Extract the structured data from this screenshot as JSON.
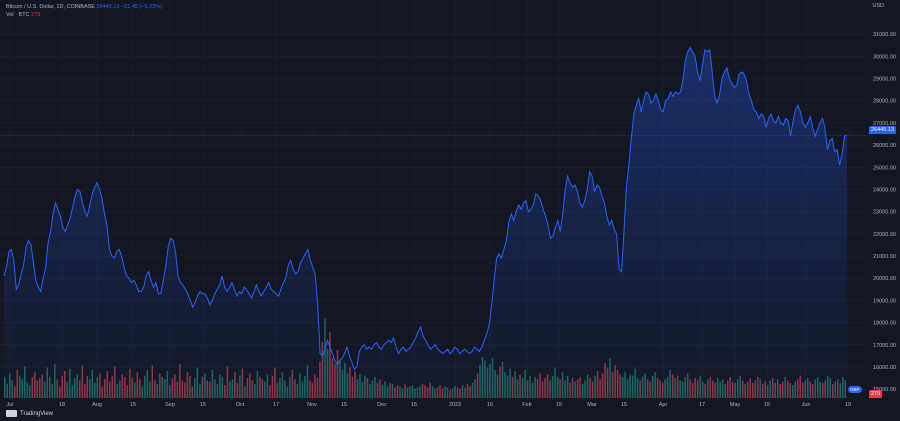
{
  "legend": {
    "symbol": "Bitcoin / U.S. Dollar, 1D, COINBASE",
    "last_price": "26445.13",
    "change": "−61.45 (−0.23%)",
    "vol_label": "Vol · BTC",
    "vol_value": "275"
  },
  "axis_currency": "USD",
  "branding": "TradingView",
  "price_tag": "26445.13",
  "vol_tag": "275",
  "fx_badge": "GBP",
  "colors": {
    "background": "#131722",
    "line": "#2962ff",
    "grid": "#1f2433",
    "volume_up": "#22ab94",
    "volume_down": "#f7525f",
    "text": "#b2b5be"
  },
  "chart_data": {
    "type": "area",
    "title": "Bitcoin / U.S. Dollar, 1D, COINBASE",
    "ylim": [
      14600,
      32000
    ],
    "y_ticks": [
      15000,
      16000,
      17000,
      18000,
      19000,
      20000,
      21000,
      22000,
      23000,
      24000,
      25000,
      26000,
      27000,
      28000,
      29000,
      30000,
      31000
    ],
    "x_ticks": [
      "Jul",
      "18",
      "Aug",
      "15",
      "Sep",
      "15",
      "Oct",
      "17",
      "Nov",
      "15",
      "Dec",
      "15",
      "2023",
      "16",
      "Feb",
      "15",
      "Mar",
      "15",
      "Apr",
      "17",
      "May",
      "15",
      "Jun",
      "19"
    ],
    "grid": true,
    "series": [
      {
        "name": "",
        "values": [
          20100,
          20500,
          21200,
          21300,
          20800,
          19500,
          19700,
          20200,
          20600,
          21400,
          21700,
          21500,
          20700,
          19900,
          19600,
          19400,
          20000,
          20500,
          21600,
          22100,
          22900,
          23400,
          23100,
          22800,
          22300,
          22100,
          22400,
          22700,
          23200,
          23700,
          24000,
          23900,
          23400,
          23000,
          22800,
          23300,
          23800,
          24100,
          24300,
          24000,
          23600,
          22900,
          22400,
          21300,
          21000,
          20900,
          21200,
          21300,
          21000,
          20500,
          20100,
          20000,
          19800,
          19900,
          19700,
          19400,
          19400,
          19600,
          20100,
          20300,
          19900,
          19600,
          19800,
          19300,
          19300,
          19900,
          20500,
          21400,
          21800,
          21700,
          21200,
          20100,
          19800,
          19700,
          19500,
          19300,
          19000,
          18700,
          18900,
          19200,
          19400,
          19300,
          19300,
          19100,
          18800,
          19000,
          19300,
          19500,
          19700,
          20100,
          19600,
          19400,
          19600,
          19800,
          19500,
          19200,
          19400,
          19300,
          19600,
          19500,
          19300,
          19100,
          19400,
          19700,
          19400,
          19200,
          19400,
          19600,
          19800,
          19500,
          19400,
          19300,
          19200,
          19500,
          19800,
          20000,
          20600,
          20800,
          20400,
          20200,
          20300,
          20700,
          20900,
          21100,
          21300,
          20800,
          20500,
          20200,
          18800,
          16600,
          16500,
          16800,
          17200,
          16900,
          16600,
          16300,
          16100,
          16300,
          16400,
          16600,
          16900,
          16500,
          16200,
          15900,
          16000,
          16700,
          16900,
          17000,
          16800,
          16900,
          16800,
          17000,
          17100,
          16900,
          16800,
          17000,
          17100,
          17200,
          17100,
          17300,
          16900,
          16600,
          16800,
          16900,
          16700,
          16800,
          16900,
          17100,
          17300,
          17600,
          17800,
          17400,
          17200,
          17000,
          16800,
          16900,
          17000,
          16800,
          16700,
          16600,
          16700,
          16800,
          16600,
          16700,
          16900,
          16800,
          16600,
          16700,
          16800,
          16700,
          16600,
          16700,
          16900,
          16800,
          16700,
          16900,
          17200,
          17500,
          17900,
          18800,
          19900,
          20900,
          21100,
          20900,
          21300,
          21700,
          22500,
          22900,
          22600,
          23000,
          23300,
          23100,
          23400,
          23500,
          23000,
          23100,
          23300,
          23800,
          23700,
          23500,
          23100,
          22800,
          22400,
          21800,
          21900,
          22300,
          22600,
          22100,
          22900,
          24000,
          24600,
          24300,
          24100,
          24200,
          23900,
          23400,
          23200,
          23500,
          24000,
          24800,
          24600,
          23900,
          24200,
          24100,
          23700,
          23400,
          22800,
          22400,
          22600,
          22200,
          22000,
          20400,
          20300,
          22100,
          24100,
          25100,
          26300,
          27400,
          27800,
          28100,
          27500,
          28000,
          28400,
          28300,
          27900,
          28000,
          28300,
          28000,
          27600,
          27500,
          28000,
          28100,
          28400,
          28200,
          28400,
          28300,
          28400,
          28900,
          29800,
          30200,
          30400,
          30200,
          30000,
          29300,
          28900,
          29600,
          30300,
          30200,
          30300,
          29300,
          28200,
          27900,
          28300,
          29000,
          29300,
          29500,
          29000,
          28800,
          28600,
          28700,
          29200,
          29300,
          29200,
          28900,
          28300,
          28000,
          27600,
          27500,
          27200,
          27400,
          27300,
          26800,
          27200,
          27400,
          27100,
          27000,
          27300,
          27000,
          26900,
          27200,
          27100,
          26400,
          27100,
          27600,
          27800,
          27500,
          27000,
          26800,
          27000,
          27300,
          26800,
          26400,
          26700,
          27000,
          27200,
          26800,
          25800,
          26200,
          26300,
          25700,
          25800,
          25100,
          25600,
          26400,
          26445
        ]
      }
    ],
    "volume": {
      "values": [
        1.8,
        1.2,
        2.1,
        1.5,
        1.0,
        2.4,
        1.9,
        1.6,
        2.7,
        1.3,
        1.1,
        1.8,
        2.2,
        1.5,
        1.7,
        2.0,
        1.4,
        2.6,
        1.8,
        1.2,
        2.9,
        1.6,
        1.0,
        1.9,
        2.3,
        1.4,
        2.5,
        1.1,
        1.7,
        2.0,
        1.5,
        2.8,
        1.2,
        1.9,
        1.6,
        2.4,
        1.3,
        1.8,
        2.1,
        1.0,
        1.6,
        2.3,
        1.4,
        1.9,
        2.7,
        1.2,
        1.5,
        2.0,
        1.8,
        1.1,
        2.5,
        1.7,
        1.3,
        2.2,
        1.6,
        1.0,
        1.9,
        2.4,
        1.4,
        2.8,
        1.5,
        1.2,
        2.1,
        1.8,
        1.6,
        2.3,
        1.1,
        1.7,
        2.0,
        1.4,
        2.9,
        1.5,
        1.3,
        2.2,
        1.9,
        1.0,
        1.7,
        2.6,
        1.2,
        1.8,
        2.1,
        1.5,
        1.4,
        2.4,
        1.6,
        1.2,
        2.0,
        1.8,
        1.1,
        2.7,
        1.4,
        1.6,
        2.2,
        1.3,
        1.9,
        2.5,
        1.0,
        1.7,
        2.1,
        1.5,
        1.2,
        2.3,
        1.8,
        1.6,
        1.4,
        2.0,
        1.1,
        1.9,
        2.6,
        1.3,
        1.7,
        2.2,
        1.5,
        1.0,
        1.8,
        2.4,
        1.6,
        1.2,
        2.1,
        1.4,
        1.9,
        2.8,
        1.5,
        1.3,
        2.0,
        1.7,
        3.1,
        4.8,
        6.8,
        4.2,
        5.6,
        3.4,
        2.9,
        4.1,
        3.2,
        2.4,
        3.0,
        2.1,
        2.6,
        1.8,
        2.3,
        1.6,
        2.0,
        1.4,
        1.9,
        1.7,
        1.2,
        1.5,
        1.8,
        1.3,
        1.6,
        1.1,
        1.4,
        1.0,
        1.3,
        1.2,
        0.9,
        1.1,
        1.0,
        0.8,
        1.2,
        0.9,
        1.0,
        1.1,
        0.8,
        0.9,
        1.0,
        1.2,
        1.1,
        0.9,
        1.3,
        1.0,
        0.8,
        0.9,
        1.1,
        0.8,
        1.0,
        0.9,
        0.7,
        0.8,
        1.0,
        0.9,
        0.8,
        1.1,
        0.9,
        1.2,
        1.0,
        1.3,
        1.6,
        2.1,
        2.8,
        3.5,
        3.2,
        2.6,
        2.9,
        3.4,
        2.4,
        2.0,
        2.7,
        3.1,
        2.2,
        1.9,
        2.5,
        1.8,
        2.3,
        1.6,
        2.0,
        1.7,
        2.4,
        1.5,
        1.9,
        1.3,
        1.8,
        1.6,
        2.1,
        1.4,
        1.7,
        2.0,
        1.5,
        1.9,
        2.6,
        1.8,
        1.6,
        2.2,
        1.5,
        1.9,
        1.3,
        1.7,
        1.4,
        1.6,
        1.8,
        1.2,
        1.5,
        2.0,
        1.7,
        1.4,
        1.9,
        2.3,
        1.6,
        2.1,
        3.0,
        2.6,
        3.4,
        2.2,
        2.8,
        2.4,
        2.0,
        1.8,
        2.2,
        1.6,
        2.0,
        1.9,
        2.5,
        1.7,
        1.5,
        1.8,
        2.1,
        1.6,
        1.4,
        1.9,
        2.2,
        1.7,
        1.5,
        1.3,
        1.6,
        1.8,
        2.4,
        2.0,
        1.7,
        1.9,
        1.5,
        1.4,
        1.8,
        2.1,
        1.6,
        1.3,
        1.7,
        1.5,
        1.9,
        1.4,
        1.2,
        1.6,
        1.8,
        1.5,
        1.3,
        1.7,
        1.4,
        1.6,
        1.2,
        1.5,
        1.8,
        1.4,
        1.3,
        1.6,
        1.9,
        1.5,
        1.2,
        1.4,
        1.7,
        1.3,
        1.5,
        1.8,
        1.6,
        1.2,
        1.4,
        1.1,
        1.5,
        1.7,
        1.3,
        1.6,
        1.2,
        1.4,
        1.8,
        1.5,
        1.3,
        1.1,
        1.4,
        1.6,
        1.9,
        1.3,
        1.5,
        1.7,
        1.4,
        1.2,
        1.6,
        1.8,
        1.4,
        1.3,
        1.5,
        1.9,
        1.7,
        1.2,
        1.4,
        1.6,
        1.3,
        1.8,
        1.5
      ],
      "down_color": "#f7525f",
      "up_color": "#22ab94"
    }
  }
}
